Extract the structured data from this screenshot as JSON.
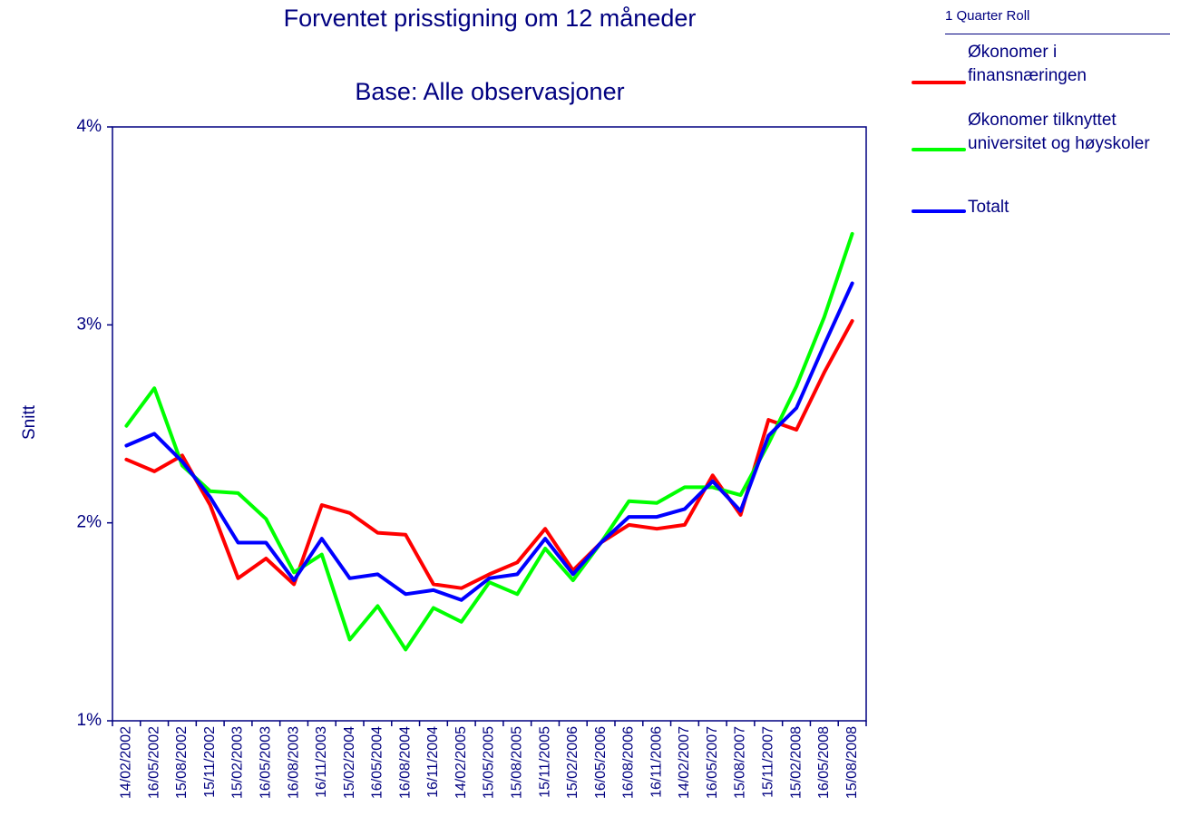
{
  "chart_data": {
    "type": "line",
    "title": "Forventet prisstigning om 12 måneder",
    "subtitle": "Base: Alle observasjoner",
    "y_label": "Snitt",
    "legend_title": "1 Quarter Roll",
    "categories": [
      "14/02/2002",
      "16/05/2002",
      "15/08/2002",
      "15/11/2002",
      "15/02/2003",
      "16/05/2003",
      "16/08/2003",
      "16/11/2003",
      "15/02/2004",
      "16/05/2004",
      "16/08/2004",
      "16/11/2004",
      "14/02/2005",
      "15/05/2005",
      "15/08/2005",
      "15/11/2005",
      "15/02/2006",
      "16/05/2006",
      "16/08/2006",
      "16/11/2006",
      "14/02/2007",
      "16/05/2007",
      "15/08/2007",
      "15/11/2007",
      "15/02/2008",
      "16/05/2008",
      "15/08/2008"
    ],
    "series": [
      {
        "name": "Økonomer i finansnæringen",
        "color": "#ff0000",
        "values": [
          2.32,
          2.26,
          2.34,
          2.09,
          1.72,
          1.82,
          1.69,
          2.09,
          2.05,
          1.95,
          1.94,
          1.69,
          1.67,
          1.74,
          1.8,
          1.97,
          1.76,
          1.9,
          1.99,
          1.97,
          1.99,
          2.24,
          2.04,
          2.52,
          2.47,
          2.76,
          3.02
        ]
      },
      {
        "name": "Økonomer tilknyttet universitet og høyskoler",
        "color": "#00ff00",
        "values": [
          2.49,
          2.68,
          2.29,
          2.16,
          2.15,
          2.02,
          1.75,
          1.84,
          1.41,
          1.58,
          1.36,
          1.57,
          1.5,
          1.7,
          1.64,
          1.87,
          1.71,
          1.9,
          2.11,
          2.1,
          2.18,
          2.18,
          2.14,
          2.4,
          2.69,
          3.04,
          3.46
        ]
      },
      {
        "name": "Totalt",
        "color": "#0000ff",
        "values": [
          2.39,
          2.45,
          2.31,
          2.13,
          1.9,
          1.9,
          1.71,
          1.92,
          1.72,
          1.74,
          1.64,
          1.66,
          1.61,
          1.72,
          1.74,
          1.92,
          1.74,
          1.9,
          2.03,
          2.03,
          2.07,
          2.21,
          2.06,
          2.44,
          2.58,
          2.9,
          3.21
        ]
      }
    ],
    "ylim": [
      1,
      4
    ],
    "yticks": [
      {
        "value": 1,
        "label": "1%"
      },
      {
        "value": 2,
        "label": "2%"
      },
      {
        "value": 3,
        "label": "3%"
      },
      {
        "value": 4,
        "label": "4%"
      }
    ],
    "grid": false
  }
}
